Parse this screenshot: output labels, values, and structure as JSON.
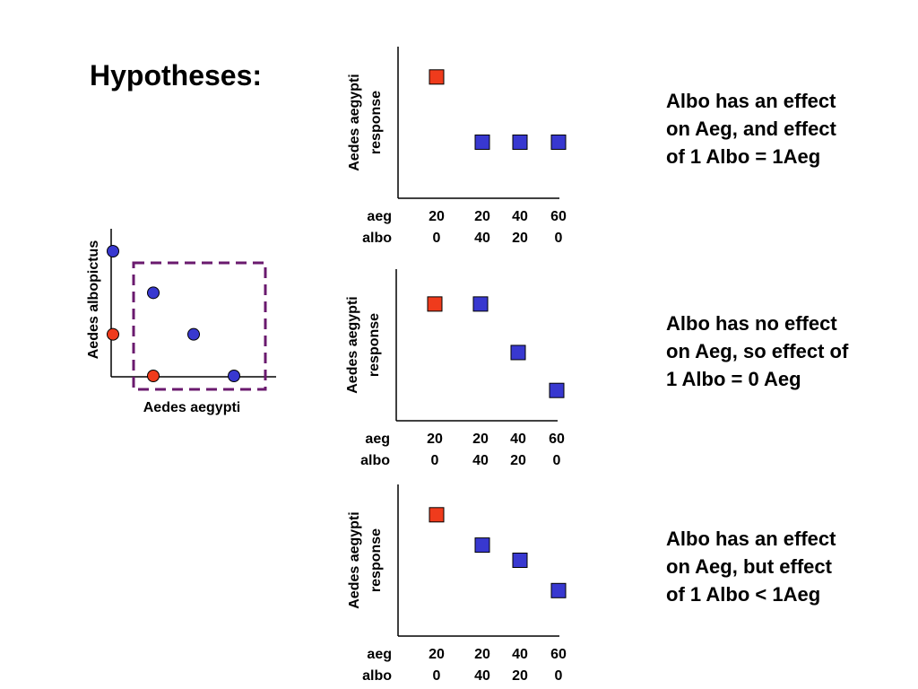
{
  "slide": {
    "title": "Hypotheses:",
    "hypotheses": [
      [
        "Albo has an effect",
        "on Aeg, and effect",
        "of 1 Albo = 1Aeg"
      ],
      [
        "Albo has no effect",
        "on Aeg, so effect of",
        "1 Albo = 0 Aeg"
      ],
      [
        "Albo has an effect",
        "on Aeg, but effect",
        "of 1 Albo < 1Aeg"
      ]
    ]
  },
  "colors": {
    "red": "#ef3b1c",
    "blue": "#3838d0",
    "purple": "#6a1a6e",
    "axis": "#000000"
  },
  "chart_data": [
    {
      "type": "scatter",
      "xlabel": "Aedes aegypti",
      "ylabel": "Aedes albopictus",
      "xlim": [
        0,
        60
      ],
      "ylim": [
        0,
        60
      ],
      "grid": false,
      "annotation": "dashed box enclosing treatments with aeg >= 20",
      "series": [
        {
          "color": "red",
          "points": [
            [
              0,
              20
            ],
            [
              20,
              0
            ]
          ]
        },
        {
          "color": "blue",
          "points": [
            [
              0,
              60
            ],
            [
              20,
              40
            ],
            [
              40,
              20
            ],
            [
              60,
              0
            ]
          ]
        }
      ]
    },
    {
      "type": "scatter",
      "ylabel": [
        "Aedes aegypti",
        "response"
      ],
      "row_labels": [
        "aeg",
        "albo"
      ],
      "categories": [
        [
          "20",
          "0"
        ],
        [
          "20",
          "40"
        ],
        [
          "40",
          "20"
        ],
        [
          "60",
          "0"
        ]
      ],
      "ylim": [
        0,
        1
      ],
      "grid": false,
      "values": [
        0.8,
        0.37,
        0.37,
        0.37
      ],
      "colors": [
        "red",
        "blue",
        "blue",
        "blue"
      ]
    },
    {
      "type": "scatter",
      "ylabel": [
        "Aedes aegypti",
        "response"
      ],
      "row_labels": [
        "aeg",
        "albo"
      ],
      "categories": [
        [
          "20",
          "0"
        ],
        [
          "20",
          "40"
        ],
        [
          "40",
          "20"
        ],
        [
          "60",
          "0"
        ]
      ],
      "ylim": [
        0,
        1
      ],
      "grid": false,
      "values": [
        0.77,
        0.77,
        0.45,
        0.2
      ],
      "colors": [
        "red",
        "blue",
        "blue",
        "blue"
      ]
    },
    {
      "type": "scatter",
      "ylabel": [
        "Aedes aegypti",
        "response"
      ],
      "row_labels": [
        "aeg",
        "albo"
      ],
      "categories": [
        [
          "20",
          "0"
        ],
        [
          "20",
          "40"
        ],
        [
          "40",
          "20"
        ],
        [
          "60",
          "0"
        ]
      ],
      "ylim": [
        0,
        1
      ],
      "grid": false,
      "values": [
        0.8,
        0.6,
        0.5,
        0.3
      ],
      "colors": [
        "red",
        "blue",
        "blue",
        "blue"
      ]
    }
  ]
}
